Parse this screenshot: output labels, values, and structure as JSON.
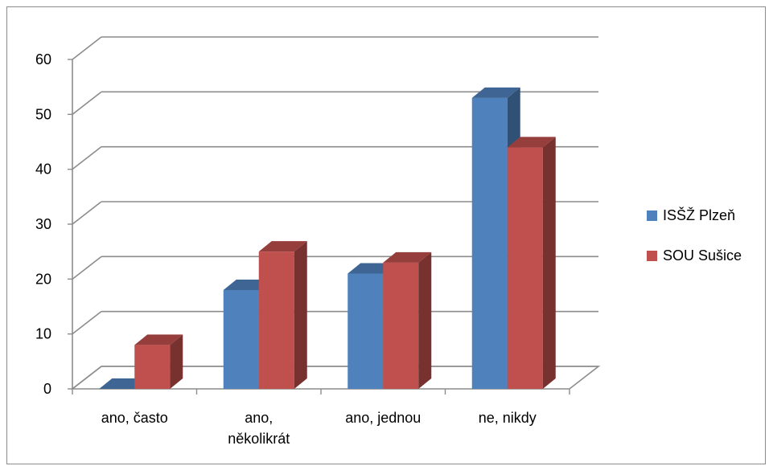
{
  "chart_data": {
    "type": "bar",
    "categories": [
      [
        "ano, často"
      ],
      [
        "ano,",
        "několikrát"
      ],
      [
        "ano, jednou"
      ],
      [
        "ne, nikdy"
      ]
    ],
    "series": [
      {
        "name": "ISŠŽ Plzeň",
        "values": [
          0,
          18,
          21,
          53
        ],
        "color": "#4f81bd"
      },
      {
        "name": "SOU Sušice",
        "values": [
          8,
          25,
          23,
          44
        ],
        "color": "#c0504d"
      }
    ],
    "ylim": [
      0,
      60
    ],
    "yticks": [
      "0",
      "10",
      "20",
      "30",
      "40",
      "50",
      "60"
    ],
    "grid": true,
    "legend_position": "right",
    "style": "3d clustered column"
  }
}
